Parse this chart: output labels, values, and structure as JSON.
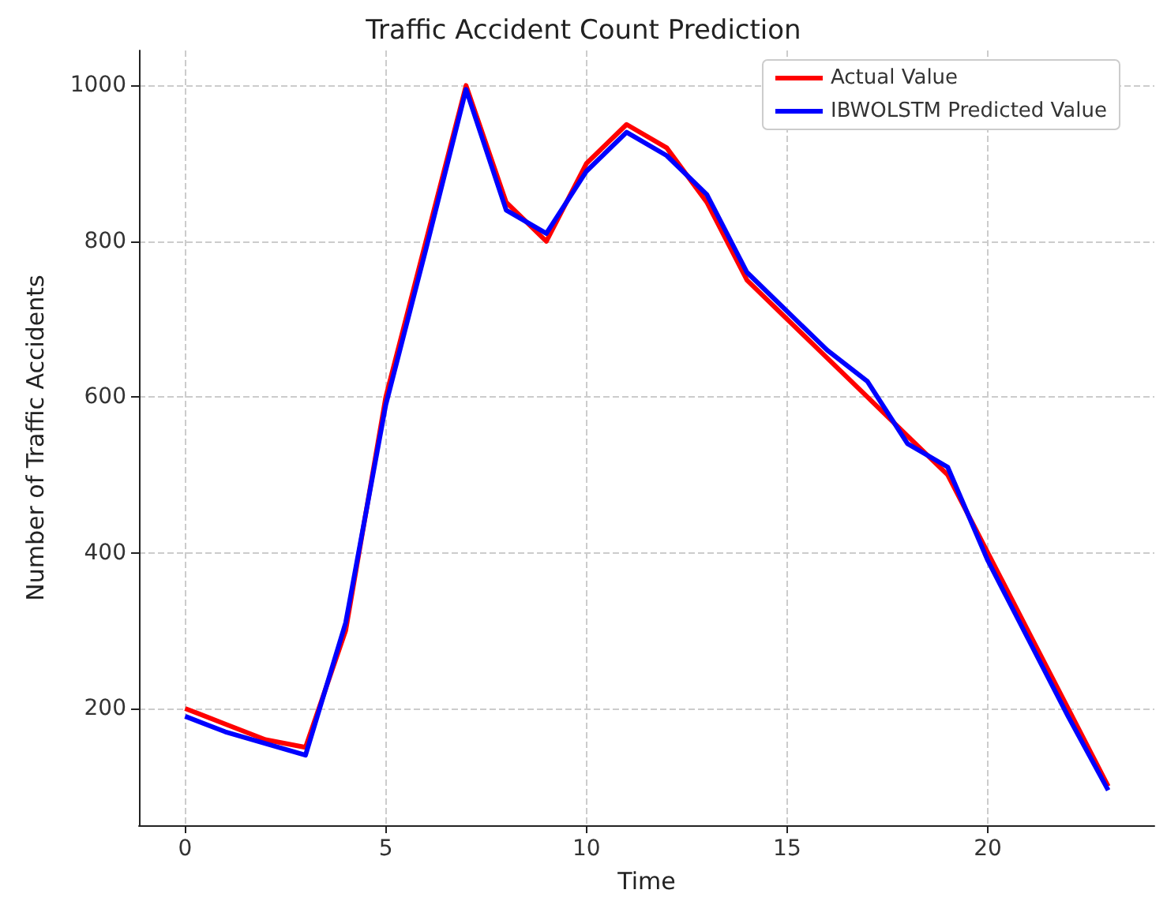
{
  "chart_data": {
    "type": "line",
    "title": "Traffic Accident Count Prediction",
    "xlabel": "Time",
    "ylabel": "Number of Traffic Accidents",
    "x": [
      0,
      1,
      2,
      3,
      4,
      5,
      6,
      7,
      8,
      9,
      10,
      11,
      12,
      13,
      14,
      15,
      16,
      17,
      18,
      19,
      20,
      21,
      22,
      23
    ],
    "series": [
      {
        "name": "Actual Value",
        "color": "#ff0000",
        "values": [
          200,
          180,
          160,
          150,
          300,
          600,
          800,
          1000,
          850,
          800,
          900,
          950,
          920,
          850,
          750,
          700,
          650,
          600,
          550,
          500,
          400,
          300,
          200,
          100
        ]
      },
      {
        "name": "IBWOLSTM Predicted Value",
        "color": "#0000ff",
        "values": [
          190,
          170,
          155,
          140,
          310,
          590,
          790,
          995,
          840,
          810,
          890,
          940,
          910,
          860,
          760,
          710,
          660,
          620,
          540,
          510,
          390,
          290,
          190,
          95
        ]
      }
    ],
    "xlim": [
      -1.15,
      24.15
    ],
    "xticks": [
      0,
      5,
      10,
      15,
      20
    ],
    "ylim": [
      50,
      1045
    ],
    "yticks": [
      200,
      400,
      600,
      800,
      1000
    ],
    "grid": true,
    "legend": "top right",
    "marker": "none",
    "line_style": "solid"
  }
}
